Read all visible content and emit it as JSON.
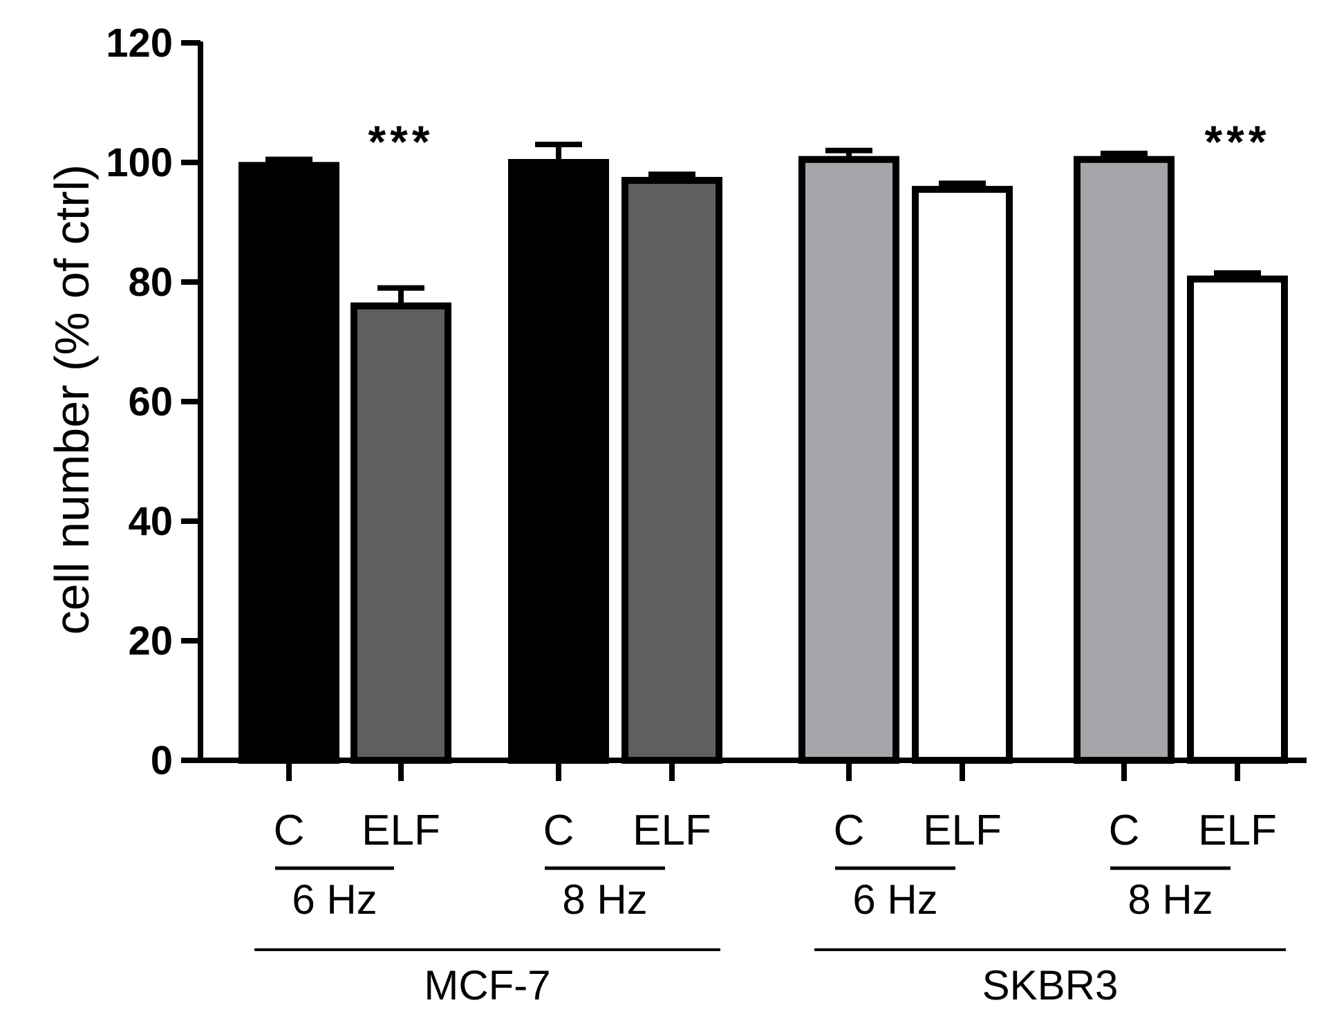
{
  "chart_data": {
    "type": "bar",
    "title": "",
    "ylabel": "cell number (% of ctrl)",
    "ylim": [
      0,
      120
    ],
    "yticks": [
      0,
      20,
      40,
      60,
      80,
      100,
      120
    ],
    "grid": false,
    "categories": [
      "C",
      "ELF",
      "C",
      "ELF",
      "C",
      "ELF",
      "C",
      "ELF"
    ],
    "values": [
      99.5,
      76,
      100,
      97,
      100.5,
      95.5,
      100.5,
      80.5
    ],
    "errors": [
      1,
      3,
      3,
      1,
      1.5,
      1,
      1,
      1
    ],
    "bar_colors": [
      "#000000",
      "#5f5f5f",
      "#000000",
      "#5f5f5f",
      "#a6a5aa",
      "#ffffff",
      "#a6a5aa",
      "#ffffff"
    ],
    "significance": [
      {
        "bar_index": 1,
        "label": "***"
      },
      {
        "bar_index": 7,
        "label": "***"
      }
    ],
    "frequency_groups": [
      {
        "label": "6 Hz",
        "bars": [
          0,
          1
        ]
      },
      {
        "label": "8 Hz",
        "bars": [
          2,
          3
        ]
      },
      {
        "label": "6 Hz",
        "bars": [
          4,
          5
        ]
      },
      {
        "label": "8 Hz",
        "bars": [
          6,
          7
        ]
      }
    ],
    "cell_line_groups": [
      {
        "label": "MCF-7",
        "bars": [
          0,
          1,
          2,
          3
        ]
      },
      {
        "label": "SKBR3",
        "bars": [
          4,
          5,
          6,
          7
        ]
      }
    ]
  }
}
